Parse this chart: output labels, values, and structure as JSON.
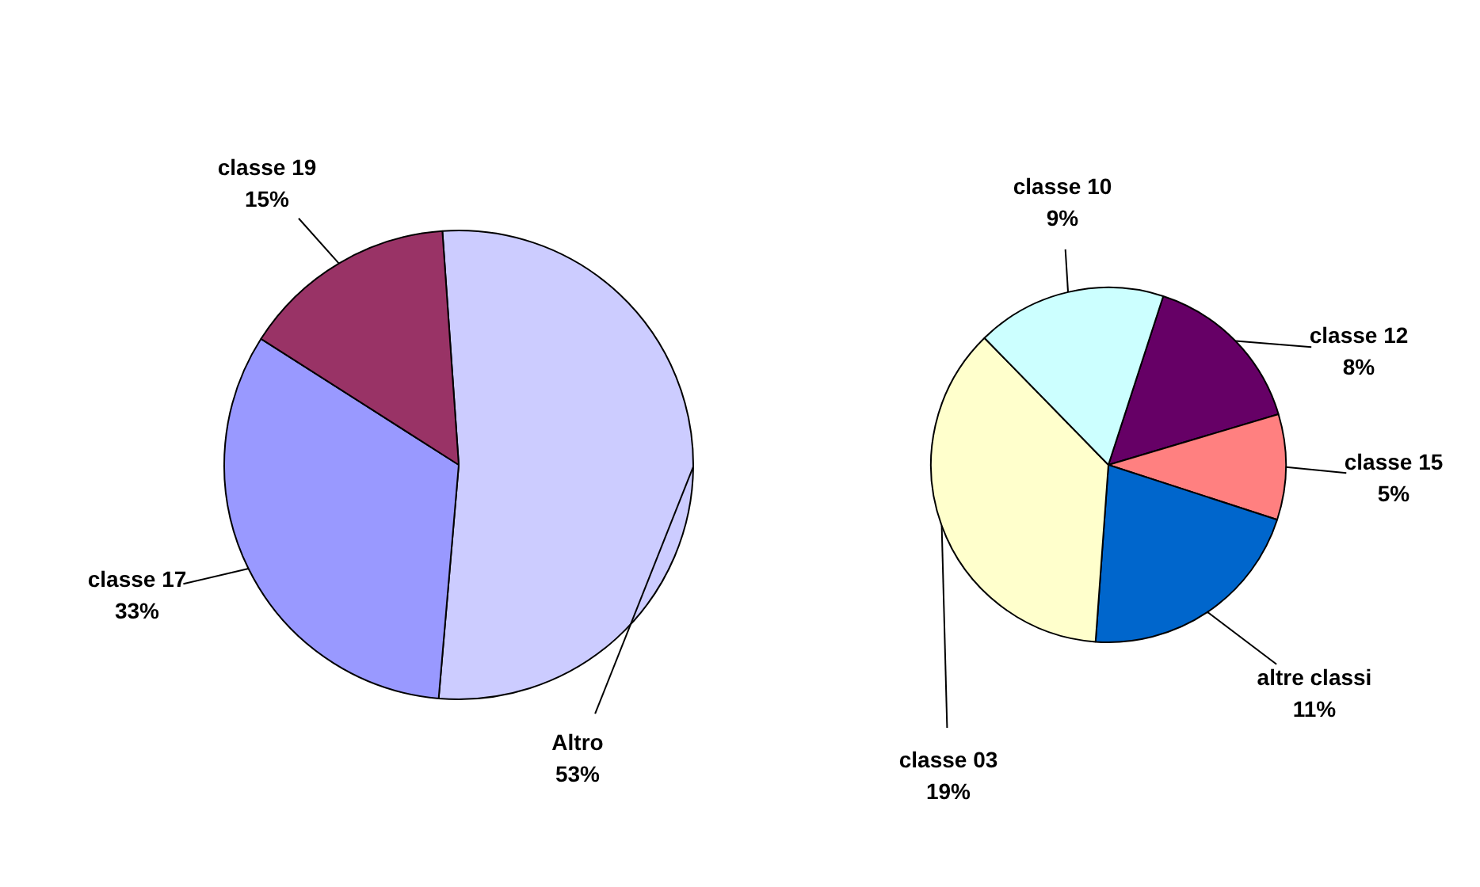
{
  "chart_data": [
    {
      "type": "pie",
      "categories": [
        "Altro",
        "classe 17",
        "classe 19"
      ],
      "values": [
        53,
        33,
        15
      ],
      "colors": [
        "#ccccff",
        "#9999ff",
        "#993366"
      ],
      "value_labels": [
        "53%",
        "33%",
        "15%"
      ]
    },
    {
      "type": "pie",
      "categories": [
        "classe 12",
        "classe 15",
        "altre classi",
        "classe 03",
        "classe 10"
      ],
      "values": [
        8,
        5,
        11,
        19,
        9
      ],
      "colors": [
        "#660066",
        "#ff8080",
        "#0066cc",
        "#ffffcc",
        "#ccffff"
      ],
      "value_labels": [
        "8%",
        "5%",
        "11%",
        "19%",
        "9%"
      ]
    }
  ]
}
